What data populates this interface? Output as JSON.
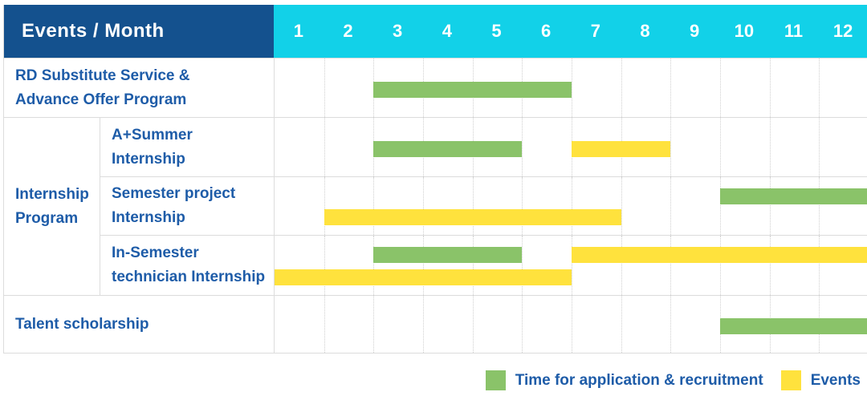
{
  "colors": {
    "header_navy": "#14518E",
    "header_cyan": "#12D1E8",
    "green": "#8AC369",
    "yellow": "#FFE23D",
    "label_blue": "#1E5CA8",
    "grid_line": "#DCDCDC"
  },
  "table": {
    "corner_title": "Events / Month",
    "months": [
      "1",
      "2",
      "3",
      "4",
      "5",
      "6",
      "7",
      "8",
      "9",
      "10",
      "11",
      "12"
    ]
  },
  "chart_data": {
    "type": "table",
    "subtype": "gantt",
    "title": "Events / Month",
    "x": {
      "unit": "month",
      "ticks": [
        1,
        2,
        3,
        4,
        5,
        6,
        7,
        8,
        9,
        10,
        11,
        12
      ],
      "range": [
        1,
        12
      ]
    },
    "grid": "dotted-vertical-month-lines",
    "legend_position": "bottom-right",
    "legend": [
      {
        "id": "green",
        "label": "Time for application & recruitment",
        "color": "#8AC369"
      },
      {
        "id": "yellow",
        "label": "Events",
        "color": "#FFE23D"
      }
    ],
    "group_label_lines": [
      "Internship",
      "Program"
    ],
    "rows": [
      {
        "group": "",
        "event": "RD Substitute Service & Advance Offer Program",
        "event_lines": [
          "RD Substitute Service &",
          "Advance Offer Program"
        ],
        "bars": [
          {
            "series": "green",
            "start_month": 3,
            "end_month": 6,
            "lane": "single"
          }
        ]
      },
      {
        "group": "Internship Program",
        "event": "A+Summer Internship",
        "event_lines": [
          "A+Summer",
          "Internship"
        ],
        "bars": [
          {
            "series": "green",
            "start_month": 3,
            "end_month": 5,
            "lane": "single"
          },
          {
            "series": "yellow",
            "start_month": 7,
            "end_month": 8,
            "lane": "single"
          }
        ]
      },
      {
        "group": "Internship Program",
        "event": "Semester project Internship",
        "event_lines": [
          "Semester project",
          "Internship"
        ],
        "bars": [
          {
            "series": "green",
            "start_month": 10,
            "end_month": 12,
            "lane": "upper"
          },
          {
            "series": "yellow",
            "start_month": 2,
            "end_month": 7,
            "lane": "lower"
          }
        ]
      },
      {
        "group": "Internship Program",
        "event": "In-Semester technician Internship",
        "event_lines": [
          "In-Semester",
          "technician Internship"
        ],
        "bars": [
          {
            "series": "green",
            "start_month": 3,
            "end_month": 5,
            "lane": "upper"
          },
          {
            "series": "yellow",
            "start_month": 7,
            "end_month": 12,
            "lane": "upper"
          },
          {
            "series": "yellow",
            "start_month": 1,
            "end_month": 6,
            "lane": "lower"
          }
        ]
      },
      {
        "group": "",
        "event": "Talent scholarship",
        "event_lines": [
          "Talent scholarship"
        ],
        "bars": [
          {
            "series": "green",
            "start_month": 10,
            "end_month": 12,
            "lane": "single"
          }
        ]
      }
    ]
  }
}
